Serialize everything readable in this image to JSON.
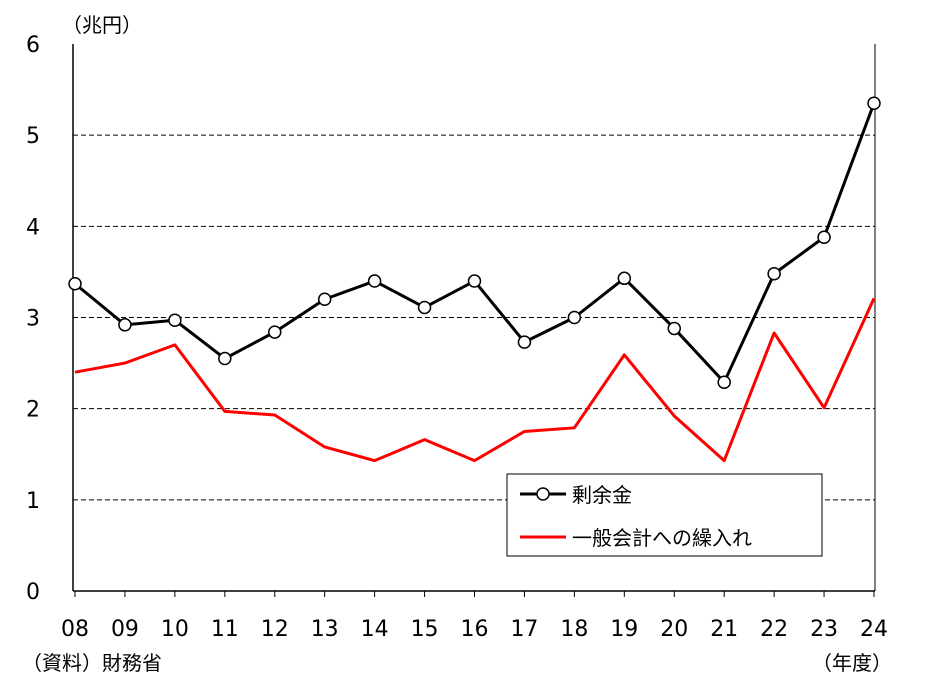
{
  "chart_data": {
    "type": "line",
    "unit_label": "（兆円）",
    "xlabel": "（年度）",
    "source": "（資料）財務省",
    "categories": [
      "08",
      "09",
      "10",
      "11",
      "12",
      "13",
      "14",
      "15",
      "16",
      "17",
      "18",
      "19",
      "20",
      "21",
      "22",
      "23",
      "24"
    ],
    "ylim": [
      0,
      6
    ],
    "yticks": [
      "0",
      "1",
      "2",
      "3",
      "4",
      "5",
      "6"
    ],
    "grid": "horizontal dashed",
    "legend_position": "bottom-right",
    "series": [
      {
        "name": "剰余金",
        "color": "#000000",
        "marker": "circle",
        "values": [
          3.37,
          2.92,
          2.97,
          2.55,
          2.84,
          3.2,
          3.4,
          3.11,
          3.4,
          2.73,
          3.0,
          3.43,
          2.88,
          2.29,
          3.48,
          3.88,
          5.35
        ]
      },
      {
        "name": "一般会計への繰入れ",
        "color": "#ff0000",
        "marker": "none",
        "values": [
          2.4,
          2.5,
          2.7,
          1.97,
          1.93,
          1.58,
          1.43,
          1.66,
          1.43,
          1.75,
          1.79,
          2.59,
          1.92,
          1.43,
          2.83,
          2.01,
          3.21
        ]
      }
    ]
  }
}
